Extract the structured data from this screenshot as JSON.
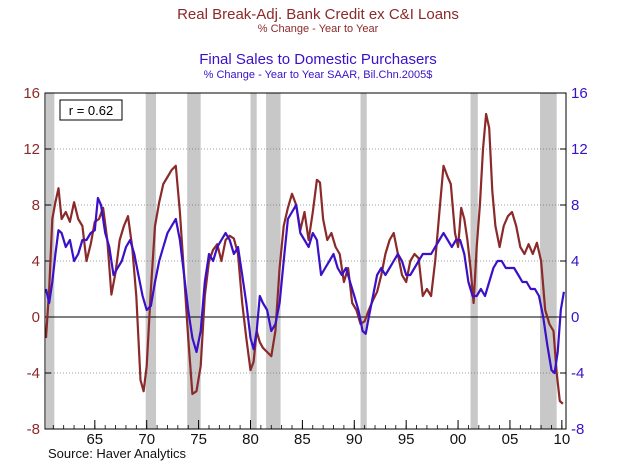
{
  "header": {
    "title1": "Real Break-Adj. Bank Credit ex C&I Loans",
    "subtitle1": "% Change - Year to Year",
    "title2": "Final Sales to Domestic Purchasers",
    "subtitle2": "% Change - Year to Year     SAAR, Bil.Chn.2005$"
  },
  "source": "Source: Haver Analytics",
  "colors": {
    "credit": "#8b2a2a",
    "sales": "#3a10c8",
    "recession": "#c8c8c8"
  },
  "chart_data": {
    "type": "line",
    "title": "Real Break-Adj. Bank Credit ex C&I Loans vs Final Sales to Domestic Purchasers",
    "xlabel": "",
    "ylabel": "% Change - Year to Year",
    "xlim": [
      1960.2,
      2010.4
    ],
    "ylim": [
      -8,
      16
    ],
    "yticks": [
      -8,
      -4,
      0,
      4,
      8,
      12,
      16
    ],
    "xticks": [
      {
        "value": 1965,
        "label": "65"
      },
      {
        "value": 1970,
        "label": "70"
      },
      {
        "value": 1975,
        "label": "75"
      },
      {
        "value": 1980,
        "label": "80"
      },
      {
        "value": 1985,
        "label": "85"
      },
      {
        "value": 1990,
        "label": "90"
      },
      {
        "value": 1995,
        "label": "95"
      },
      {
        "value": 2000,
        "label": "00"
      },
      {
        "value": 2005,
        "label": "05"
      },
      {
        "value": 2010,
        "label": "10"
      }
    ],
    "annotation": "r = 0.62",
    "recessions": [
      [
        1960.3,
        1961.1
      ],
      [
        1969.9,
        1970.9
      ],
      [
        1973.9,
        1975.2
      ],
      [
        1980.0,
        1980.6
      ],
      [
        1981.5,
        1982.9
      ],
      [
        1990.6,
        1991.2
      ],
      [
        2001.2,
        2001.9
      ],
      [
        2007.9,
        2009.5
      ]
    ],
    "series": [
      {
        "name": "Real Break-Adj. Bank Credit ex C&I Loans",
        "color": "#8b2a2a",
        "points": [
          [
            1960.3,
            -1.5
          ],
          [
            1960.6,
            2.0
          ],
          [
            1960.9,
            7.0
          ],
          [
            1961.2,
            8.2
          ],
          [
            1961.5,
            9.2
          ],
          [
            1961.8,
            7.0
          ],
          [
            1962.2,
            7.5
          ],
          [
            1962.6,
            6.8
          ],
          [
            1963.0,
            8.2
          ],
          [
            1963.4,
            7.0
          ],
          [
            1963.8,
            6.5
          ],
          [
            1964.2,
            4.0
          ],
          [
            1964.6,
            5.2
          ],
          [
            1965.0,
            6.8
          ],
          [
            1965.4,
            7.0
          ],
          [
            1965.8,
            7.8
          ],
          [
            1966.2,
            5.5
          ],
          [
            1966.6,
            1.6
          ],
          [
            1967.0,
            3.2
          ],
          [
            1967.4,
            5.5
          ],
          [
            1967.8,
            6.5
          ],
          [
            1968.2,
            7.2
          ],
          [
            1968.6,
            5.0
          ],
          [
            1969.0,
            1.5
          ],
          [
            1969.4,
            -4.5
          ],
          [
            1969.7,
            -5.3
          ],
          [
            1970.0,
            -3.5
          ],
          [
            1970.4,
            2.0
          ],
          [
            1970.8,
            6.5
          ],
          [
            1971.2,
            8.2
          ],
          [
            1971.6,
            9.5
          ],
          [
            1972.0,
            10.0
          ],
          [
            1972.4,
            10.5
          ],
          [
            1972.8,
            10.8
          ],
          [
            1973.2,
            7.5
          ],
          [
            1973.6,
            3.0
          ],
          [
            1974.0,
            -1.5
          ],
          [
            1974.4,
            -5.5
          ],
          [
            1974.8,
            -5.3
          ],
          [
            1975.2,
            -3.5
          ],
          [
            1975.6,
            1.5
          ],
          [
            1976.0,
            4.0
          ],
          [
            1976.4,
            4.8
          ],
          [
            1976.8,
            5.2
          ],
          [
            1977.2,
            4.0
          ],
          [
            1977.6,
            5.5
          ],
          [
            1978.0,
            5.8
          ],
          [
            1978.4,
            5.6
          ],
          [
            1978.8,
            4.5
          ],
          [
            1979.2,
            1.0
          ],
          [
            1979.6,
            -1.5
          ],
          [
            1980.0,
            -3.8
          ],
          [
            1980.3,
            -3.2
          ],
          [
            1980.6,
            -1.0
          ],
          [
            1980.9,
            -1.8
          ],
          [
            1981.2,
            -2.2
          ],
          [
            1981.6,
            -2.5
          ],
          [
            1982.0,
            -2.8
          ],
          [
            1982.4,
            -1.0
          ],
          [
            1982.8,
            3.5
          ],
          [
            1983.2,
            6.5
          ],
          [
            1983.6,
            7.8
          ],
          [
            1984.0,
            8.8
          ],
          [
            1984.4,
            8.0
          ],
          [
            1984.8,
            6.2
          ],
          [
            1985.2,
            7.5
          ],
          [
            1985.6,
            5.5
          ],
          [
            1986.0,
            7.5
          ],
          [
            1986.4,
            9.8
          ],
          [
            1986.7,
            9.6
          ],
          [
            1987.0,
            7.0
          ],
          [
            1987.4,
            5.5
          ],
          [
            1987.8,
            6.0
          ],
          [
            1988.2,
            5.0
          ],
          [
            1988.6,
            4.5
          ],
          [
            1989.0,
            2.5
          ],
          [
            1989.4,
            3.5
          ],
          [
            1989.8,
            1.0
          ],
          [
            1990.2,
            0.5
          ],
          [
            1990.6,
            -0.5
          ],
          [
            1991.0,
            -0.3
          ],
          [
            1991.4,
            0.5
          ],
          [
            1991.8,
            1.2
          ],
          [
            1992.2,
            1.8
          ],
          [
            1992.6,
            3.0
          ],
          [
            1993.0,
            4.5
          ],
          [
            1993.4,
            5.5
          ],
          [
            1993.8,
            6.0
          ],
          [
            1994.2,
            4.5
          ],
          [
            1994.6,
            3.0
          ],
          [
            1995.0,
            2.5
          ],
          [
            1995.4,
            4.0
          ],
          [
            1995.8,
            4.5
          ],
          [
            1996.2,
            4.2
          ],
          [
            1996.6,
            1.5
          ],
          [
            1997.0,
            2.0
          ],
          [
            1997.4,
            1.5
          ],
          [
            1997.8,
            4.0
          ],
          [
            1998.2,
            7.5
          ],
          [
            1998.6,
            10.8
          ],
          [
            1999.0,
            10.0
          ],
          [
            1999.3,
            9.5
          ],
          [
            1999.7,
            6.0
          ],
          [
            2000.0,
            5.0
          ],
          [
            2000.3,
            7.8
          ],
          [
            2000.6,
            7.0
          ],
          [
            2000.9,
            5.5
          ],
          [
            2001.2,
            3.5
          ],
          [
            2001.5,
            1.0
          ],
          [
            2001.8,
            5.0
          ],
          [
            2002.1,
            8.0
          ],
          [
            2002.4,
            12.0
          ],
          [
            2002.7,
            14.5
          ],
          [
            2003.0,
            13.5
          ],
          [
            2003.3,
            9.0
          ],
          [
            2003.6,
            6.5
          ],
          [
            2004.0,
            5.0
          ],
          [
            2004.4,
            6.5
          ],
          [
            2004.8,
            7.2
          ],
          [
            2005.2,
            7.5
          ],
          [
            2005.6,
            6.5
          ],
          [
            2006.0,
            5.0
          ],
          [
            2006.4,
            4.5
          ],
          [
            2006.8,
            5.2
          ],
          [
            2007.2,
            4.5
          ],
          [
            2007.6,
            5.3
          ],
          [
            2008.0,
            4.0
          ],
          [
            2008.4,
            0.5
          ],
          [
            2008.8,
            -0.5
          ],
          [
            2009.2,
            -1.0
          ],
          [
            2009.5,
            -4.0
          ],
          [
            2009.8,
            -6.0
          ],
          [
            2010.1,
            -6.2
          ]
        ]
      },
      {
        "name": "Final Sales to Domestic Purchasers",
        "color": "#3a10c8",
        "points": [
          [
            1960.3,
            2.0
          ],
          [
            1960.6,
            1.0
          ],
          [
            1960.9,
            2.5
          ],
          [
            1961.2,
            4.5
          ],
          [
            1961.5,
            6.2
          ],
          [
            1961.8,
            6.0
          ],
          [
            1962.2,
            5.0
          ],
          [
            1962.6,
            5.5
          ],
          [
            1963.0,
            4.0
          ],
          [
            1963.4,
            4.5
          ],
          [
            1963.8,
            5.5
          ],
          [
            1964.2,
            5.5
          ],
          [
            1964.6,
            6.0
          ],
          [
            1965.0,
            6.2
          ],
          [
            1965.3,
            8.5
          ],
          [
            1965.6,
            8.0
          ],
          [
            1966.0,
            6.0
          ],
          [
            1966.4,
            5.0
          ],
          [
            1966.8,
            3.0
          ],
          [
            1967.2,
            3.5
          ],
          [
            1967.6,
            4.0
          ],
          [
            1968.0,
            5.0
          ],
          [
            1968.4,
            5.5
          ],
          [
            1968.8,
            4.5
          ],
          [
            1969.2,
            3.0
          ],
          [
            1969.6,
            1.5
          ],
          [
            1970.0,
            0.5
          ],
          [
            1970.4,
            0.8
          ],
          [
            1970.8,
            2.5
          ],
          [
            1971.2,
            4.0
          ],
          [
            1971.6,
            5.0
          ],
          [
            1972.0,
            6.0
          ],
          [
            1972.4,
            6.5
          ],
          [
            1972.8,
            7.0
          ],
          [
            1973.2,
            5.5
          ],
          [
            1973.6,
            3.0
          ],
          [
            1974.0,
            0.5
          ],
          [
            1974.4,
            -1.5
          ],
          [
            1974.8,
            -2.5
          ],
          [
            1975.2,
            -1.0
          ],
          [
            1975.6,
            2.5
          ],
          [
            1976.0,
            4.5
          ],
          [
            1976.4,
            4.0
          ],
          [
            1976.8,
            5.0
          ],
          [
            1977.2,
            5.5
          ],
          [
            1977.6,
            6.0
          ],
          [
            1978.0,
            5.5
          ],
          [
            1978.4,
            4.5
          ],
          [
            1978.8,
            5.0
          ],
          [
            1979.2,
            3.0
          ],
          [
            1979.6,
            1.0
          ],
          [
            1980.0,
            -1.5
          ],
          [
            1980.3,
            -2.3
          ],
          [
            1980.6,
            -1.0
          ],
          [
            1980.9,
            1.5
          ],
          [
            1981.2,
            1.0
          ],
          [
            1981.6,
            0.5
          ],
          [
            1982.0,
            -1.0
          ],
          [
            1982.4,
            -0.5
          ],
          [
            1982.8,
            1.0
          ],
          [
            1983.2,
            4.0
          ],
          [
            1983.6,
            7.0
          ],
          [
            1984.0,
            7.5
          ],
          [
            1984.4,
            8.0
          ],
          [
            1984.8,
            6.0
          ],
          [
            1985.2,
            5.5
          ],
          [
            1985.6,
            5.0
          ],
          [
            1986.0,
            6.0
          ],
          [
            1986.4,
            5.5
          ],
          [
            1986.8,
            3.0
          ],
          [
            1987.2,
            3.5
          ],
          [
            1987.6,
            4.0
          ],
          [
            1988.0,
            4.5
          ],
          [
            1988.4,
            3.5
          ],
          [
            1988.8,
            3.0
          ],
          [
            1989.2,
            3.5
          ],
          [
            1989.6,
            2.5
          ],
          [
            1990.0,
            1.5
          ],
          [
            1990.4,
            0.5
          ],
          [
            1990.8,
            -1.0
          ],
          [
            1991.1,
            -1.2
          ],
          [
            1991.4,
            0.0
          ],
          [
            1991.8,
            1.5
          ],
          [
            1992.2,
            3.0
          ],
          [
            1992.6,
            3.5
          ],
          [
            1993.0,
            3.0
          ],
          [
            1993.4,
            3.5
          ],
          [
            1993.8,
            4.0
          ],
          [
            1994.2,
            4.5
          ],
          [
            1994.6,
            4.0
          ],
          [
            1995.0,
            3.0
          ],
          [
            1995.4,
            3.0
          ],
          [
            1995.8,
            3.5
          ],
          [
            1996.2,
            4.0
          ],
          [
            1996.6,
            4.5
          ],
          [
            1997.0,
            4.5
          ],
          [
            1997.4,
            4.5
          ],
          [
            1997.8,
            5.0
          ],
          [
            1998.2,
            5.5
          ],
          [
            1998.6,
            6.0
          ],
          [
            1999.0,
            5.5
          ],
          [
            1999.4,
            5.0
          ],
          [
            1999.8,
            5.5
          ],
          [
            2000.2,
            5.5
          ],
          [
            2000.6,
            4.5
          ],
          [
            2001.0,
            2.5
          ],
          [
            2001.4,
            1.5
          ],
          [
            2001.8,
            1.5
          ],
          [
            2002.2,
            2.0
          ],
          [
            2002.6,
            1.5
          ],
          [
            2003.0,
            2.5
          ],
          [
            2003.4,
            3.5
          ],
          [
            2003.8,
            4.0
          ],
          [
            2004.2,
            4.0
          ],
          [
            2004.6,
            3.5
          ],
          [
            2005.0,
            3.5
          ],
          [
            2005.4,
            3.5
          ],
          [
            2005.8,
            3.0
          ],
          [
            2006.2,
            2.5
          ],
          [
            2006.6,
            2.5
          ],
          [
            2007.0,
            2.0
          ],
          [
            2007.4,
            2.0
          ],
          [
            2007.8,
            1.5
          ],
          [
            2008.2,
            0.0
          ],
          [
            2008.6,
            -2.0
          ],
          [
            2009.0,
            -3.8
          ],
          [
            2009.3,
            -4.0
          ],
          [
            2009.6,
            -2.5
          ],
          [
            2009.9,
            0.5
          ],
          [
            2010.2,
            1.8
          ]
        ]
      }
    ]
  }
}
